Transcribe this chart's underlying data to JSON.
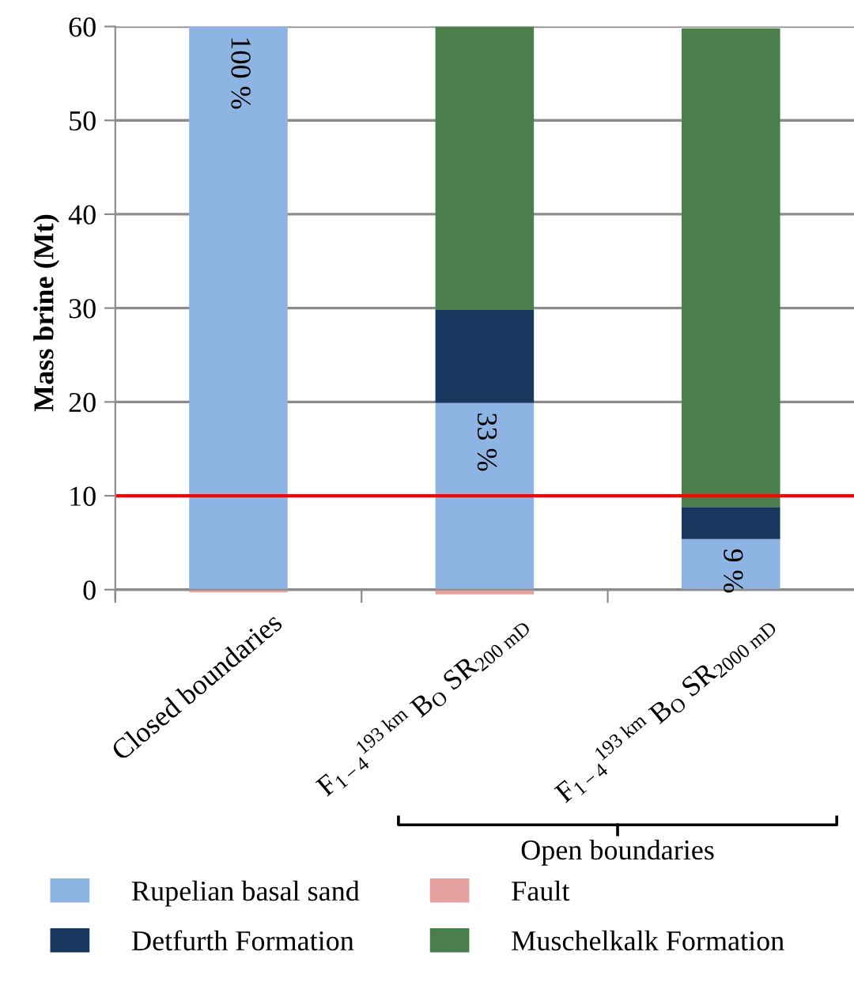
{
  "chart_data": {
    "type": "bar",
    "stacked": true,
    "ylabel": "Mass brine (Mt)",
    "categories": [
      "Closed boundaries",
      "F$_{1−4}$$^{193 km}$ B$_{O}$ SR$_{200 mD}$",
      "F$_{1−4}$$^{193 km}$ B$_{O}$ SR$_{2000 mD}$"
    ],
    "series": [
      {
        "name": "Rupelian basal sand",
        "color": "#8eb4e3",
        "values": [
          60,
          19.9,
          5.4
        ]
      },
      {
        "name": "Detfurth Formation",
        "color": "#17375e",
        "values": [
          0,
          9.9,
          3.4
        ]
      },
      {
        "name": "Fault",
        "color": "#e6a0a0",
        "values": [
          -0.3,
          -0.5,
          null
        ]
      },
      {
        "name": "Muschelkalk Formation",
        "color": "#4a7f4c",
        "values": [
          0,
          30.2,
          51.0
        ]
      }
    ],
    "ylim": [
      -1,
      60
    ],
    "yticks": [
      0,
      10,
      20,
      30,
      40,
      50,
      60
    ],
    "grid": "y",
    "legend": "bottom",
    "ref_lines": [
      {
        "axis": "y",
        "value": 10,
        "color": "#ff0000"
      }
    ],
    "annotations": [
      "100 %",
      "33 %",
      "9 %",
      "Open boundaries"
    ]
  }
}
